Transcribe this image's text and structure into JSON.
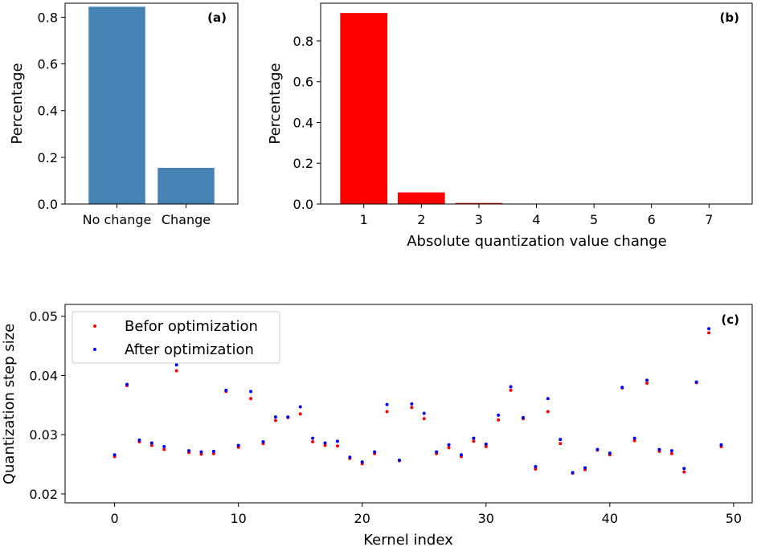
{
  "chart_data": [
    {
      "id": "a",
      "type": "bar",
      "panel_label": "(a)",
      "categories": [
        "No change",
        "Change"
      ],
      "values": [
        0.845,
        0.155
      ],
      "ylabel": "Percentage",
      "xlabel": "",
      "ylim": [
        0,
        0.86
      ],
      "yticks": [
        "0.0",
        "0.2",
        "0.4",
        "0.6",
        "0.8"
      ],
      "color": "#4682b4",
      "grid": false
    },
    {
      "id": "b",
      "type": "bar",
      "panel_label": "(b)",
      "categories": [
        "1",
        "2",
        "3",
        "4",
        "5",
        "6",
        "7"
      ],
      "values": [
        0.937,
        0.057,
        0.005,
        0.001,
        0.0005,
        0.0002,
        0.0001
      ],
      "ylabel": "Percentage",
      "xlabel": "Absolute quantization value change",
      "ylim": [
        0,
        0.985
      ],
      "yticks": [
        "0.0",
        "0.2",
        "0.4",
        "0.6",
        "0.8"
      ],
      "color": "#ff0000",
      "grid": false
    },
    {
      "id": "c",
      "type": "scatter",
      "panel_label": "(c)",
      "xlabel": "Kernel index",
      "ylabel": "Quantization step size",
      "xlim": [
        -4,
        51.5
      ],
      "ylim": [
        0.0185,
        0.052
      ],
      "xticks": [
        "0",
        "10",
        "20",
        "30",
        "40",
        "50"
      ],
      "yticks": [
        "0.02",
        "0.03",
        "0.04",
        "0.05"
      ],
      "legend_position": "upper left",
      "grid": false,
      "x": [
        0,
        1,
        2,
        3,
        4,
        5,
        6,
        7,
        8,
        9,
        10,
        11,
        12,
        13,
        14,
        15,
        16,
        17,
        18,
        19,
        20,
        21,
        22,
        23,
        24,
        25,
        26,
        27,
        28,
        29,
        30,
        31,
        32,
        33,
        34,
        35,
        36,
        37,
        38,
        39,
        40,
        41,
        42,
        43,
        44,
        45,
        46,
        47,
        48,
        49
      ],
      "series": [
        {
          "name": "Befor optimization",
          "color": "#ff0000",
          "values": [
            0.0263,
            0.0383,
            0.0288,
            0.0282,
            0.0275,
            0.0408,
            0.027,
            0.0267,
            0.0268,
            0.0373,
            0.0279,
            0.0361,
            0.0285,
            0.0324,
            0.0329,
            0.0335,
            0.0288,
            0.0282,
            0.0281,
            0.026,
            0.0251,
            0.0268,
            0.0339,
            0.0256,
            0.0346,
            0.0327,
            0.0268,
            0.0278,
            0.0263,
            0.0289,
            0.028,
            0.0325,
            0.0375,
            0.0327,
            0.0242,
            0.0339,
            0.0285,
            0.0235,
            0.0241,
            0.0274,
            0.0266,
            0.0379,
            0.029,
            0.0387,
            0.0272,
            0.0268,
            0.0237,
            0.0388,
            0.0472,
            0.028
          ]
        },
        {
          "name": "After optimization",
          "color": "#0000ff",
          "values": [
            0.0266,
            0.0385,
            0.0291,
            0.0286,
            0.028,
            0.0418,
            0.0273,
            0.0271,
            0.0272,
            0.0375,
            0.0282,
            0.0373,
            0.0288,
            0.033,
            0.033,
            0.0347,
            0.0294,
            0.0286,
            0.0289,
            0.0262,
            0.0254,
            0.0271,
            0.0351,
            0.0257,
            0.0352,
            0.0336,
            0.0271,
            0.0283,
            0.0266,
            0.0294,
            0.0284,
            0.0333,
            0.0381,
            0.0329,
            0.0246,
            0.0361,
            0.0292,
            0.0236,
            0.0244,
            0.0275,
            0.0269,
            0.038,
            0.0294,
            0.0392,
            0.0275,
            0.0273,
            0.0243,
            0.0389,
            0.0479,
            0.0283
          ]
        }
      ]
    }
  ]
}
